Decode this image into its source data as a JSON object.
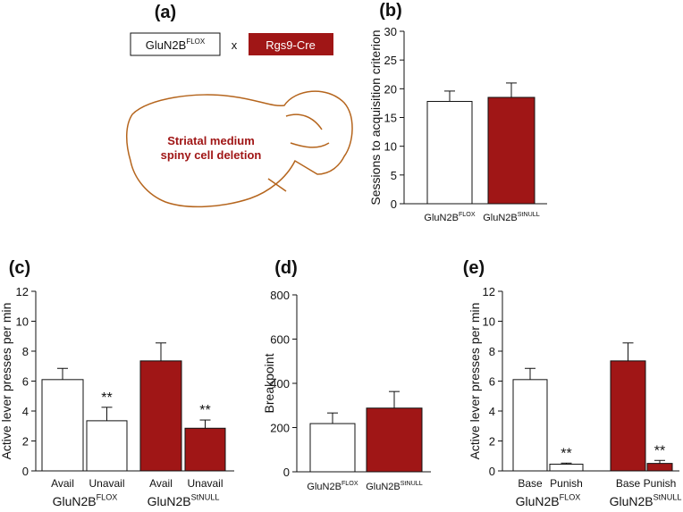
{
  "diagram": {
    "label": "(a)",
    "left_box": {
      "name": "GluN2B",
      "sup": "FLOX"
    },
    "cross": "x",
    "right_box": "Rgs9-Cre",
    "brain_text": [
      "Striatal medium",
      "spiny cell deletion"
    ]
  },
  "chart_data": [
    {
      "type": "bar",
      "label": "(b)",
      "ylabel": "Sessions to acquisition criterion",
      "categories": [
        "GluN2B",
        "GluN2B"
      ],
      "category_sups": [
        "FLOX",
        "StNULL"
      ],
      "values": [
        17.8,
        18.5
      ],
      "errors": [
        1.8,
        2.5
      ],
      "colors": [
        "#ffffff",
        "#a01616"
      ],
      "ylim": [
        0,
        30
      ],
      "yticks": [
        0,
        5,
        10,
        15,
        20,
        25,
        30
      ]
    },
    {
      "type": "bar",
      "label": "(c)",
      "ylabel": "Active lever presses per min",
      "categories": [
        "Avail",
        "Unavail",
        "Avail",
        "Unavail"
      ],
      "groups": [
        {
          "name": "GluN2B",
          "sup": "FLOX"
        },
        {
          "name": "GluN2B",
          "sup": "StNULL"
        }
      ],
      "values": [
        6.1,
        3.35,
        7.35,
        2.85
      ],
      "errors": [
        0.75,
        0.9,
        1.2,
        0.55
      ],
      "annotations": [
        null,
        "**",
        null,
        "**"
      ],
      "colors": [
        "#ffffff",
        "#ffffff",
        "#a01616",
        "#a01616"
      ],
      "ylim": [
        0,
        12
      ],
      "yticks": [
        0,
        2,
        4,
        6,
        8,
        10,
        12
      ]
    },
    {
      "type": "bar",
      "label": "(d)",
      "ylabel": "Breakpoint",
      "categories": [
        "GluN2B",
        "GluN2B"
      ],
      "category_sups": [
        "FLOX",
        "StNULL"
      ],
      "values": [
        218,
        288
      ],
      "errors": [
        48,
        75
      ],
      "colors": [
        "#ffffff",
        "#a01616"
      ],
      "ylim": [
        0,
        800
      ],
      "yticks": [
        0,
        200,
        400,
        600,
        800
      ]
    },
    {
      "type": "bar",
      "label": "(e)",
      "ylabel": "Active lever presses per min",
      "categories": [
        "Base",
        "Punish",
        "Base",
        "Punish"
      ],
      "groups": [
        {
          "name": "GluN2B",
          "sup": "FLOX"
        },
        {
          "name": "GluN2B",
          "sup": "StNULL"
        }
      ],
      "values": [
        6.1,
        0.45,
        7.35,
        0.5
      ],
      "errors": [
        0.75,
        0.07,
        1.2,
        0.2
      ],
      "annotations": [
        null,
        "**",
        null,
        "**"
      ],
      "colors": [
        "#ffffff",
        "#ffffff",
        "#a01616",
        "#a01616"
      ],
      "ylim": [
        0,
        12
      ],
      "yticks": [
        0,
        2,
        4,
        6,
        8,
        10,
        12
      ]
    }
  ]
}
